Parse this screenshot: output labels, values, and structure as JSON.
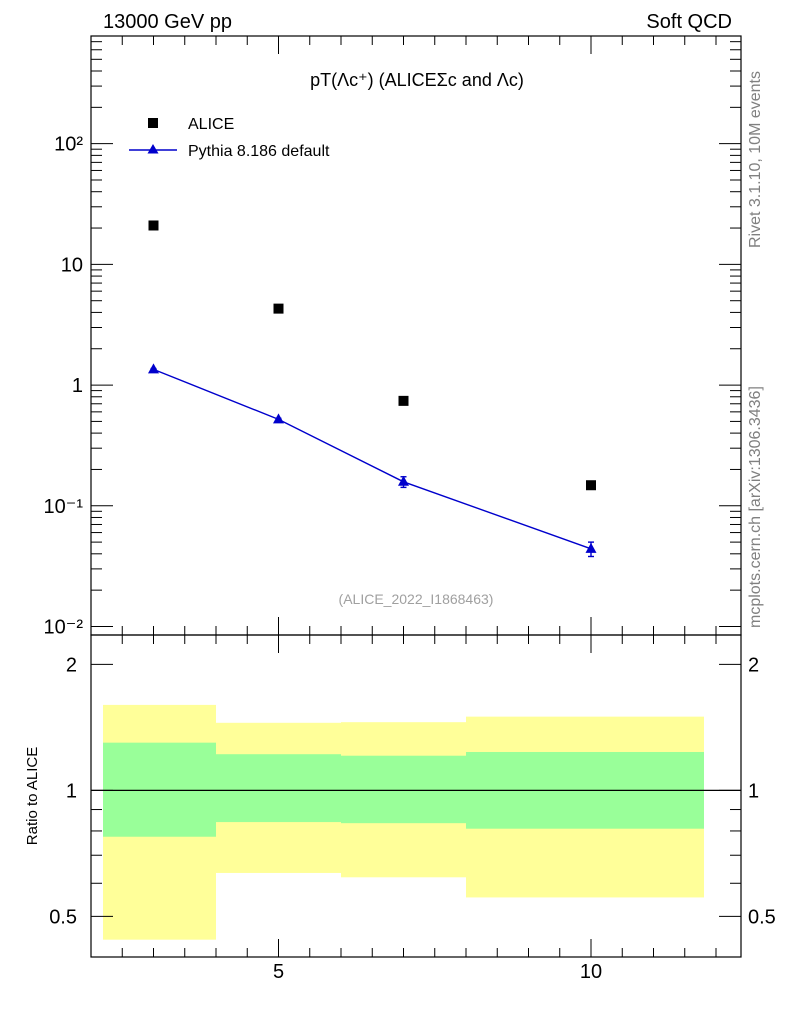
{
  "header": {
    "left": "13000 GeV pp",
    "right": "Soft QCD"
  },
  "side": {
    "top": "Rivet 3.1.10,  10M events",
    "bottom": "mcplots.cern.ch [arXiv:1306.3436]"
  },
  "chart_data": [
    {
      "type": "scatter",
      "title": "pT(Λc⁺) (ALICEΣc and Λc)",
      "analysis_label": "(ALICE_2022_I1868463)",
      "x_scale": "linear",
      "y_scale": "log",
      "xlim": [
        2,
        12.4
      ],
      "ylim": [
        0.0085,
        780
      ],
      "y_tick_labels": [
        "10⁻²",
        "10⁻¹",
        "1",
        "10",
        "10²"
      ],
      "x_tick_labels": [
        "5",
        "10"
      ],
      "legend_position": "top-left",
      "series": [
        {
          "name": "ALICE",
          "marker": "square",
          "color": "#000000",
          "x": [
            3,
            5,
            7,
            10
          ],
          "y": [
            21,
            4.3,
            0.74,
            0.148
          ]
        },
        {
          "name": "Pythia 8.186 default",
          "marker": "triangle",
          "color": "#0000cc",
          "line": true,
          "x": [
            3,
            5,
            7,
            10
          ],
          "y": [
            1.35,
            0.52,
            0.158,
            0.044
          ],
          "y_err_low": [
            0.02,
            0.01,
            0.016,
            0.006
          ],
          "y_err_high": [
            0.02,
            0.01,
            0.016,
            0.006
          ]
        }
      ]
    },
    {
      "type": "area",
      "ylabel": "Ratio to ALICE",
      "x_scale": "linear",
      "y_scale": "log",
      "xlim": [
        2,
        12.4
      ],
      "ylim": [
        0.4,
        2.35
      ],
      "y_tick_labels": [
        "0.5",
        "1",
        "2"
      ],
      "reference_line": 1,
      "bin_edges": [
        2,
        4,
        6,
        8,
        12
      ],
      "bands": [
        {
          "color": "#ffff99",
          "low": [
            0.44,
            0.635,
            0.62,
            0.555
          ],
          "high": [
            1.6,
            1.45,
            1.455,
            1.5
          ]
        },
        {
          "color": "#99ff99",
          "low": [
            0.775,
            0.84,
            0.835,
            0.81
          ],
          "high": [
            1.3,
            1.22,
            1.21,
            1.235
          ]
        }
      ]
    }
  ]
}
